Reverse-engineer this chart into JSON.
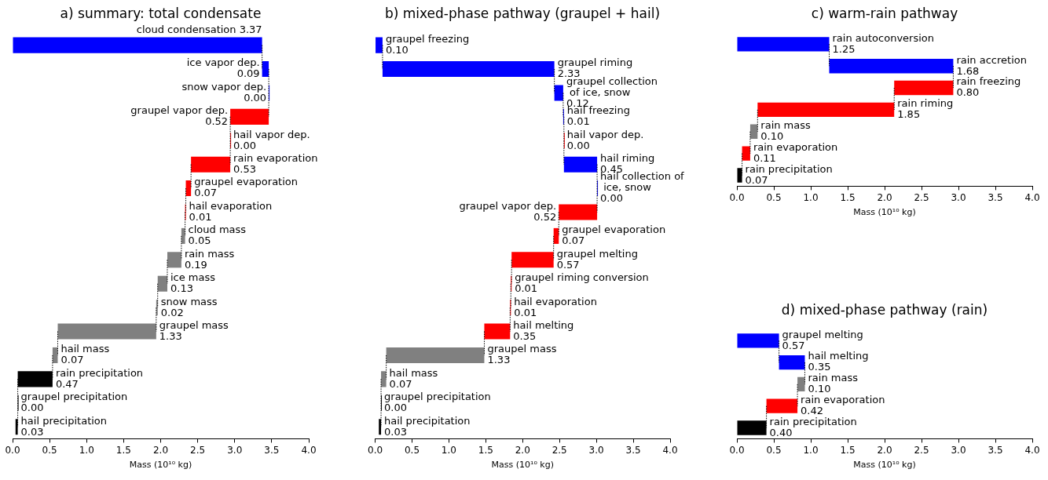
{
  "chart_data": [
    {
      "type": "bar",
      "orientation": "horizontal",
      "title": "a) summary: total condensate",
      "xlabel": "Mass (10¹⁰ kg)",
      "tick_labels": "x",
      "xlim": [
        0,
        4
      ],
      "xticks": [
        {
          "value": 0,
          "label": "0.0"
        },
        {
          "value": 0.5,
          "label": "0.5"
        },
        {
          "value": 1,
          "label": "1.0"
        },
        {
          "value": 1.5,
          "label": "1.5"
        },
        {
          "value": 2,
          "label": "2.0"
        },
        {
          "value": 2.5,
          "label": "2.5"
        },
        {
          "value": 3,
          "label": "3.0"
        },
        {
          "value": 3.5,
          "label": "3.5"
        },
        {
          "value": 4,
          "label": "4.0"
        }
      ],
      "categories": [
        "cloud condensation",
        "ice vapor dep.",
        "snow vapor dep.",
        "graupel vapor dep.",
        "hail vapor dep.",
        "rain evaporation",
        "graupel evaporation",
        "hail evaporation",
        "cloud mass",
        "rain mass",
        "ice mass",
        "snow mass",
        "graupel mass",
        "hail mass",
        "rain precipitation",
        "graupel precipitation",
        "hail precipitation"
      ],
      "values": [
        3.37,
        0.09,
        0.0,
        0.52,
        0.0,
        0.53,
        0.07,
        0.01,
        0.05,
        0.19,
        0.13,
        0.02,
        1.33,
        0.07,
        0.47,
        0.0,
        0.03
      ],
      "base": [
        0,
        3.37,
        3.46,
        2.94,
        2.94,
        2.41,
        2.34,
        2.33,
        2.28,
        2.09,
        1.96,
        1.94,
        0.61,
        0.54,
        0.07,
        0.07,
        0.04
      ],
      "value_labels": [
        "3.37",
        "0.09",
        "0.00",
        "0.52",
        "0.00",
        "0.53",
        "0.07",
        "0.01",
        "0.05",
        "0.19",
        "0.13",
        "0.02",
        "1.33",
        "0.07",
        "0.47",
        "0.00",
        "0.03"
      ],
      "colors": [
        "#0000ff",
        "#0000ff",
        "#0000ff",
        "#ff0000",
        "#ff0000",
        "#ff0000",
        "#ff0000",
        "#ff0000",
        "#808080",
        "#808080",
        "#808080",
        "#808080",
        "#808080",
        "#808080",
        "#000000",
        "#000000",
        "#000000"
      ]
    },
    {
      "type": "bar",
      "orientation": "horizontal",
      "title": "b) mixed-phase pathway (graupel + hail)",
      "xlabel": "Mass (10¹⁰ kg)",
      "tick_labels": "x",
      "xlim": [
        0,
        4
      ],
      "xticks": [
        {
          "value": 0,
          "label": "0.0"
        },
        {
          "value": 0.5,
          "label": "0.5"
        },
        {
          "value": 1,
          "label": "1.0"
        },
        {
          "value": 1.5,
          "label": "1.5"
        },
        {
          "value": 2,
          "label": "2.0"
        },
        {
          "value": 2.5,
          "label": "2.5"
        },
        {
          "value": 3,
          "label": "3.0"
        },
        {
          "value": 3.5,
          "label": "3.5"
        },
        {
          "value": 4,
          "label": "4.0"
        }
      ],
      "categories": [
        "graupel freezing",
        "graupel riming",
        "graupel collection of ice, snow",
        "hail freezing",
        "hail vapor dep.",
        "hail riming",
        "hail collection of ice, snow",
        "graupel vapor dep.",
        "graupel evaporation",
        "graupel melting",
        "graupel riming conversion",
        "hail evaporation",
        "hail melting",
        "graupel mass",
        "hail mass",
        "graupel precipitation",
        "hail precipitation"
      ],
      "values": [
        0.1,
        2.33,
        0.12,
        0.01,
        0.0,
        0.45,
        0.0,
        0.52,
        0.07,
        0.57,
        0.01,
        0.01,
        0.35,
        1.33,
        0.07,
        0.0,
        0.03
      ],
      "base": [
        0,
        0.1,
        2.43,
        2.55,
        2.56,
        2.56,
        3.01,
        2.49,
        2.42,
        1.85,
        1.84,
        1.83,
        1.48,
        0.15,
        0.08,
        0.08,
        0.05
      ],
      "value_labels": [
        "0.10",
        "2.33",
        "0.12",
        "0.01",
        "0.00",
        "0.45",
        "0.00",
        "0.52",
        "0.07",
        "0.57",
        "0.01",
        "0.01",
        "0.35",
        "1.33",
        "0.07",
        "0.00",
        "0.03"
      ],
      "colors": [
        "#0000ff",
        "#0000ff",
        "#0000ff",
        "#0000ff",
        "#ff0000",
        "#0000ff",
        "#0000ff",
        "#ff0000",
        "#ff0000",
        "#ff0000",
        "#ff0000",
        "#ff0000",
        "#ff0000",
        "#808080",
        "#808080",
        "#000000",
        "#000000"
      ]
    },
    {
      "type": "bar",
      "orientation": "horizontal",
      "title": "c) warm-rain pathway",
      "xlabel": "Mass (10¹⁰ kg)",
      "tick_labels": "x",
      "xlim": [
        0,
        4
      ],
      "xticks": [
        {
          "value": 0,
          "label": "0.0"
        },
        {
          "value": 0.5,
          "label": "0.5"
        },
        {
          "value": 1,
          "label": "1.0"
        },
        {
          "value": 1.5,
          "label": "1.5"
        },
        {
          "value": 2,
          "label": "2.0"
        },
        {
          "value": 2.5,
          "label": "2.5"
        },
        {
          "value": 3,
          "label": "3.0"
        },
        {
          "value": 3.5,
          "label": "3.5"
        },
        {
          "value": 4,
          "label": "4.0"
        }
      ],
      "categories": [
        "rain autoconversion",
        "rain accretion",
        "rain freezing",
        "rain riming",
        "rain mass",
        "rain evaporation",
        "rain precipitation"
      ],
      "values": [
        1.25,
        1.68,
        0.8,
        1.85,
        0.1,
        0.11,
        0.07
      ],
      "base": [
        0,
        1.25,
        2.13,
        0.28,
        0.18,
        0.07,
        0
      ],
      "value_labels": [
        "1.25",
        "1.68",
        "0.80",
        "1.85",
        "0.10",
        "0.11",
        "0.07"
      ],
      "colors": [
        "#0000ff",
        "#0000ff",
        "#ff0000",
        "#ff0000",
        "#808080",
        "#ff0000",
        "#000000"
      ]
    },
    {
      "type": "bar",
      "orientation": "horizontal",
      "title": "d) mixed-phase pathway (rain)",
      "xlabel": "Mass (10¹⁰ kg)",
      "tick_labels": "x",
      "xlim": [
        0,
        4
      ],
      "xticks": [
        {
          "value": 0,
          "label": "0.0"
        },
        {
          "value": 0.5,
          "label": "0.5"
        },
        {
          "value": 1,
          "label": "1.0"
        },
        {
          "value": 1.5,
          "label": "1.5"
        },
        {
          "value": 2,
          "label": "2.0"
        },
        {
          "value": 2.5,
          "label": "2.5"
        },
        {
          "value": 3,
          "label": "3.0"
        },
        {
          "value": 3.5,
          "label": "3.5"
        },
        {
          "value": 4,
          "label": "4.0"
        }
      ],
      "categories": [
        "graupel melting",
        "hail melting",
        "rain mass",
        "rain evaporation",
        "rain precipitation"
      ],
      "values": [
        0.57,
        0.35,
        0.1,
        0.42,
        0.4
      ],
      "base": [
        0,
        0.57,
        0.82,
        0.4,
        0
      ],
      "value_labels": [
        "0.57",
        "0.35",
        "0.10",
        "0.42",
        "0.40"
      ],
      "colors": [
        "#0000ff",
        "#0000ff",
        "#808080",
        "#ff0000",
        "#000000"
      ]
    }
  ]
}
